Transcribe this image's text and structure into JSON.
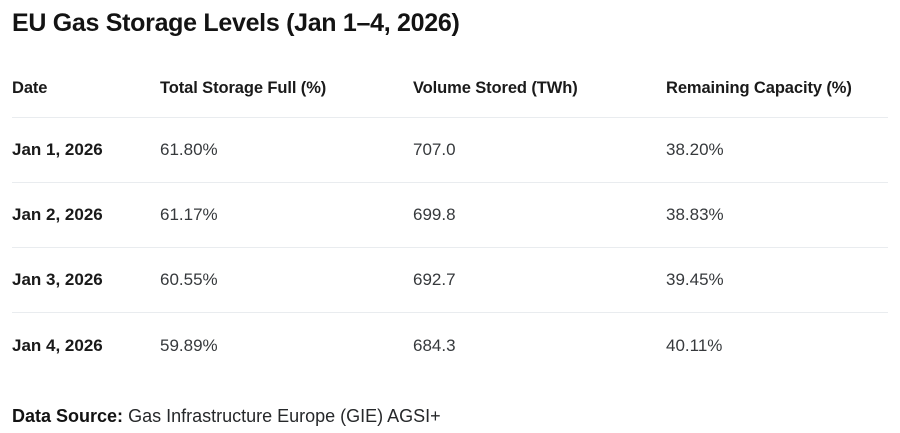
{
  "title": "EU Gas Storage Levels (Jan 1–4, 2026)",
  "table": {
    "columns": [
      "Date",
      "Total Storage Full (%)",
      "Volume Stored (TWh)",
      "Remaining Capacity (%)"
    ],
    "rows": [
      {
        "date": "Jan 1, 2026",
        "total_storage_full": "61.80%",
        "volume_stored": "707.0",
        "remaining_capacity": "38.20%"
      },
      {
        "date": "Jan 2, 2026",
        "total_storage_full": "61.17%",
        "volume_stored": "699.8",
        "remaining_capacity": "38.83%"
      },
      {
        "date": "Jan 3, 2026",
        "total_storage_full": "60.55%",
        "volume_stored": "692.7",
        "remaining_capacity": "39.45%"
      },
      {
        "date": "Jan 4, 2026",
        "total_storage_full": "59.89%",
        "volume_stored": "684.3",
        "remaining_capacity": "40.11%"
      }
    ]
  },
  "footer": {
    "label": "Data Source:",
    "text": "Gas Infrastructure Europe (GIE) AGSI+"
  },
  "colors": {
    "background": "#ffffff",
    "text_primary": "#1a1a1a",
    "text_secondary": "#36393c",
    "divider": "#e9ecef"
  },
  "chart_data": {
    "type": "table",
    "title": "EU Gas Storage Levels (Jan 1–4, 2026)",
    "columns": [
      "Date",
      "Total Storage Full (%)",
      "Volume Stored (TWh)",
      "Remaining Capacity (%)"
    ],
    "rows": [
      [
        "Jan 1, 2026",
        61.8,
        707.0,
        38.2
      ],
      [
        "Jan 2, 2026",
        61.17,
        699.8,
        38.83
      ],
      [
        "Jan 3, 2026",
        60.55,
        692.7,
        39.45
      ],
      [
        "Jan 4, 2026",
        59.89,
        684.3,
        40.11
      ]
    ],
    "source": "Gas Infrastructure Europe (GIE) AGSI+"
  }
}
